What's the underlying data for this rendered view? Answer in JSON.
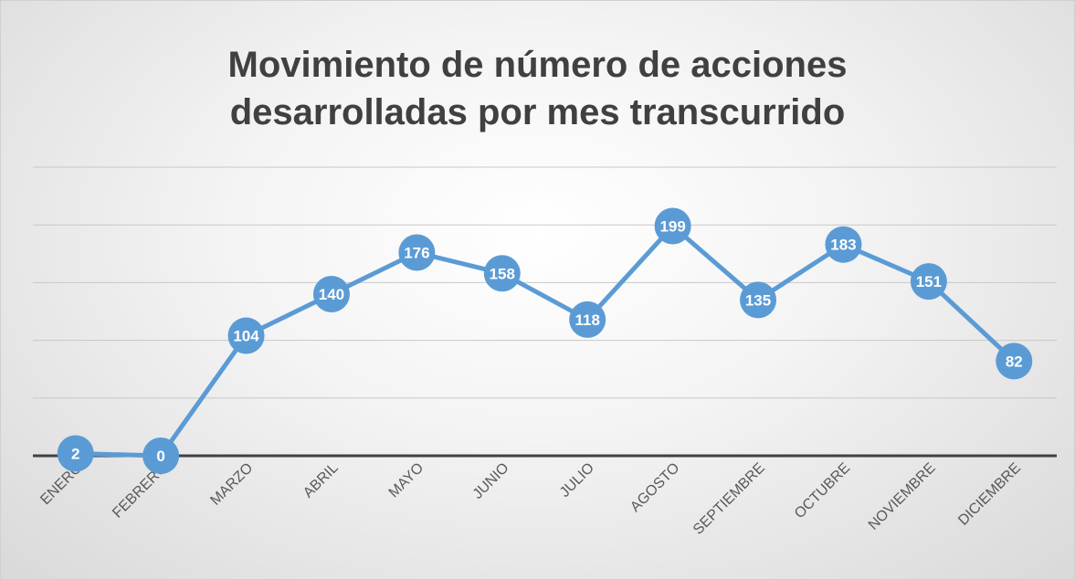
{
  "chart_data": {
    "type": "line",
    "title": "Movimiento de número de acciones desarrolladas por mes transcurrido",
    "categories": [
      "ENERO",
      "FEBRERO",
      "MARZO",
      "ABRIL",
      "MAYO",
      "JUNIO",
      "JULIO",
      "AGOSTO",
      "SEPTIEMBRE",
      "OCTUBRE",
      "NOVIEMBRE",
      "DICIEMBRE"
    ],
    "values": [
      2,
      0,
      104,
      140,
      176,
      158,
      118,
      199,
      135,
      183,
      151,
      82
    ],
    "color": "#5b9bd5",
    "ylim": [
      0,
      250
    ],
    "yticks": [
      0,
      50,
      100,
      150,
      200,
      250
    ],
    "grid": true
  }
}
